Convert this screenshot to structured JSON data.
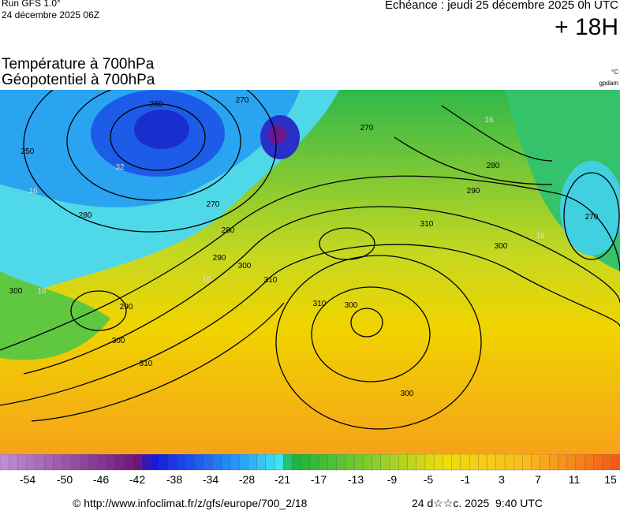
{
  "header": {
    "run": "Run GFS 1.0°",
    "run_date": "24 décembre 2025 06Z",
    "valid": "Echéance : jeudi 25 décembre 2025 0h UTC",
    "lead": "+ 18H"
  },
  "titles": {
    "line1": "Température à 700hPa",
    "line2": "Géopotentiel à 700hPa",
    "unit1": "°C",
    "unit2": "gpdam"
  },
  "map": {
    "contour_labels": [
      "250",
      "260",
      "270",
      "270",
      "280",
      "290",
      "270",
      "32",
      "16",
      "280",
      "270",
      "280",
      "290",
      "300",
      "310",
      "310",
      "300",
      "16",
      "16",
      "290",
      "300",
      "310",
      "310",
      "300",
      "300",
      "16",
      "16",
      "300"
    ]
  },
  "legend": {
    "labels": [
      "-54",
      "-50",
      "-46",
      "-42",
      "-38",
      "-34",
      "-28",
      "-21",
      "-17",
      "-13",
      "-9",
      "-5",
      "-1",
      "3",
      "7",
      "11",
      "15"
    ]
  },
  "footer": {
    "source": "© http://www.infoclimat.fr/z/gfs/europe/700_2/18",
    "issued": "24 d☆☆c. 2025  9:40 UTC"
  }
}
